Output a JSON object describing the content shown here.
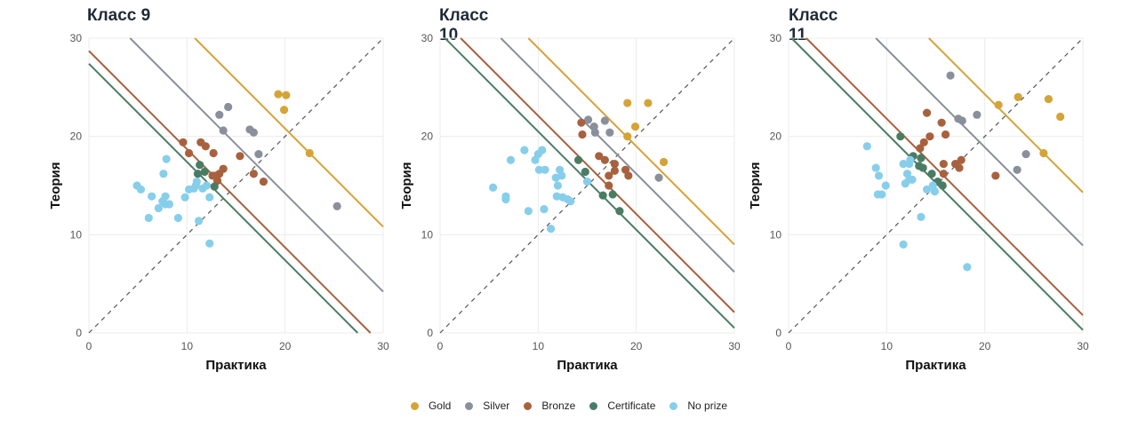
{
  "chart_data": [
    {
      "type": "scatter",
      "title": "Класс 9",
      "xlabel": "Практика",
      "ylabel": "Теория",
      "xlim": [
        0,
        30
      ],
      "ylim": [
        0,
        30
      ],
      "xticks": [
        0,
        10,
        20,
        30
      ],
      "yticks": [
        0,
        10,
        20,
        30
      ],
      "grid": true,
      "thresholds": {
        "Gold": 40.8,
        "Silver": 34.2,
        "Bronze": 28.7,
        "Certificate": 27.4
      },
      "series": [
        {
          "name": "Gold",
          "points": [
            [
              19.3,
              24.3
            ],
            [
              20.1,
              24.2
            ],
            [
              19.9,
              22.7
            ],
            [
              22.5,
              18.3
            ]
          ]
        },
        {
          "name": "Silver",
          "points": [
            [
              13.3,
              22.2
            ],
            [
              14.2,
              23.0
            ],
            [
              13.7,
              20.6
            ],
            [
              16.4,
              20.7
            ],
            [
              16.8,
              20.4
            ],
            [
              17.3,
              18.2
            ],
            [
              25.3,
              12.9
            ]
          ]
        },
        {
          "name": "Bronze",
          "points": [
            [
              9.6,
              19.4
            ],
            [
              10.2,
              18.3
            ],
            [
              11.4,
              19.4
            ],
            [
              11.9,
              19.0
            ],
            [
              12.7,
              18.3
            ],
            [
              15.4,
              18.0
            ],
            [
              13.7,
              16.7
            ],
            [
              13.3,
              16.2
            ],
            [
              12.9,
              16.0
            ],
            [
              13.1,
              15.5
            ],
            [
              12.6,
              16.0
            ],
            [
              16.8,
              16.2
            ],
            [
              17.8,
              15.4
            ]
          ]
        },
        {
          "name": "Certificate",
          "points": [
            [
              11.3,
              17.1
            ],
            [
              11.1,
              16.2
            ],
            [
              11.8,
              16.4
            ],
            [
              12.8,
              14.9
            ]
          ]
        },
        {
          "name": "No prize",
          "points": [
            [
              4.9,
              15.0
            ],
            [
              5.3,
              14.6
            ],
            [
              6.4,
              13.9
            ],
            [
              6.1,
              11.7
            ],
            [
              7.1,
              12.7
            ],
            [
              7.6,
              16.2
            ],
            [
              7.9,
              17.7
            ],
            [
              7.8,
              13.9
            ],
            [
              7.5,
              13.4
            ],
            [
              7.8,
              13.1
            ],
            [
              8.2,
              13.1
            ],
            [
              9.1,
              11.7
            ],
            [
              9.8,
              13.8
            ],
            [
              10.2,
              14.6
            ],
            [
              10.7,
              14.7
            ],
            [
              11.0,
              15.4
            ],
            [
              11.6,
              14.7
            ],
            [
              10.9,
              15.0
            ],
            [
              12.0,
              15.0
            ],
            [
              12.3,
              13.8
            ],
            [
              11.2,
              11.4
            ],
            [
              12.3,
              9.1
            ]
          ]
        }
      ]
    },
    {
      "type": "scatter",
      "title": "Класс 10",
      "xlabel": "Практика",
      "ylabel": "Теория",
      "xlim": [
        0,
        30
      ],
      "ylim": [
        0,
        30
      ],
      "xticks": [
        0,
        10,
        20,
        30
      ],
      "yticks": [
        0,
        10,
        20,
        30
      ],
      "grid": true,
      "thresholds": {
        "Gold": 39.0,
        "Silver": 36.2,
        "Bronze": 32.1,
        "Certificate": 30.5
      },
      "series": [
        {
          "name": "Gold",
          "points": [
            [
              19.1,
              23.4
            ],
            [
              21.2,
              23.4
            ],
            [
              19.9,
              21.0
            ],
            [
              19.1,
              20.0
            ],
            [
              22.8,
              17.4
            ]
          ]
        },
        {
          "name": "Silver",
          "points": [
            [
              15.1,
              21.7
            ],
            [
              16.8,
              21.6
            ],
            [
              15.7,
              21.0
            ],
            [
              15.8,
              20.4
            ],
            [
              17.3,
              20.4
            ],
            [
              22.3,
              15.8
            ]
          ]
        },
        {
          "name": "Bronze",
          "points": [
            [
              14.4,
              21.4
            ],
            [
              14.5,
              20.2
            ],
            [
              16.2,
              18.0
            ],
            [
              16.8,
              17.6
            ],
            [
              17.8,
              17.2
            ],
            [
              17.8,
              16.5
            ],
            [
              18.9,
              16.6
            ],
            [
              19.2,
              16.0
            ],
            [
              17.2,
              16.0
            ],
            [
              17.2,
              15.0
            ]
          ]
        },
        {
          "name": "Certificate",
          "points": [
            [
              14.1,
              17.6
            ],
            [
              14.8,
              16.4
            ],
            [
              16.6,
              14.0
            ],
            [
              17.6,
              14.1
            ],
            [
              18.3,
              12.4
            ]
          ]
        },
        {
          "name": "No prize",
          "points": [
            [
              5.4,
              14.8
            ],
            [
              6.7,
              13.9
            ],
            [
              6.7,
              13.6
            ],
            [
              7.2,
              17.6
            ],
            [
              8.6,
              18.6
            ],
            [
              9.0,
              12.4
            ],
            [
              9.7,
              17.6
            ],
            [
              10.0,
              18.2
            ],
            [
              10.4,
              18.6
            ],
            [
              10.1,
              16.6
            ],
            [
              10.7,
              16.6
            ],
            [
              12.2,
              16.6
            ],
            [
              11.8,
              15.8
            ],
            [
              12.4,
              16.0
            ],
            [
              12.0,
              15.0
            ],
            [
              10.6,
              12.6
            ],
            [
              11.9,
              13.9
            ],
            [
              12.5,
              13.8
            ],
            [
              13.0,
              13.6
            ],
            [
              13.3,
              13.4
            ],
            [
              11.3,
              10.6
            ],
            [
              15.0,
              15.4
            ]
          ]
        }
      ]
    },
    {
      "type": "scatter",
      "title": "Класс 11",
      "xlabel": "Практика",
      "ylabel": "Теория",
      "xlim": [
        0,
        30
      ],
      "ylim": [
        0,
        30
      ],
      "xticks": [
        0,
        10,
        20,
        30
      ],
      "yticks": [
        0,
        10,
        20,
        30
      ],
      "grid": true,
      "thresholds": {
        "Gold": 44.3,
        "Silver": 38.9,
        "Bronze": 31.8,
        "Certificate": 30.3
      },
      "series": [
        {
          "name": "Gold",
          "points": [
            [
              21.4,
              23.2
            ],
            [
              23.4,
              24.0
            ],
            [
              26.5,
              23.8
            ],
            [
              27.7,
              22.0
            ],
            [
              26.0,
              18.3
            ]
          ]
        },
        {
          "name": "Silver",
          "points": [
            [
              16.5,
              26.2
            ],
            [
              17.3,
              21.8
            ],
            [
              17.7,
              21.6
            ],
            [
              19.2,
              22.2
            ],
            [
              24.2,
              18.2
            ],
            [
              23.3,
              16.6
            ]
          ]
        },
        {
          "name": "Bronze",
          "points": [
            [
              14.1,
              22.4
            ],
            [
              15.6,
              21.4
            ],
            [
              16.0,
              20.2
            ],
            [
              14.4,
              20.0
            ],
            [
              13.8,
              19.4
            ],
            [
              13.4,
              18.8
            ],
            [
              15.8,
              17.2
            ],
            [
              17.0,
              17.2
            ],
            [
              17.6,
              17.6
            ],
            [
              17.4,
              16.8
            ],
            [
              15.8,
              16.2
            ],
            [
              21.1,
              16.0
            ]
          ]
        },
        {
          "name": "Certificate",
          "points": [
            [
              11.4,
              20.0
            ],
            [
              12.7,
              18.0
            ],
            [
              13.5,
              17.8
            ],
            [
              13.3,
              17.0
            ],
            [
              13.7,
              16.8
            ],
            [
              14.6,
              16.2
            ],
            [
              15.2,
              15.4
            ],
            [
              15.7,
              15.0
            ]
          ]
        },
        {
          "name": "No prize",
          "points": [
            [
              8.0,
              19.0
            ],
            [
              8.9,
              16.8
            ],
            [
              9.2,
              16.0
            ],
            [
              9.9,
              15.0
            ],
            [
              9.1,
              14.1
            ],
            [
              9.5,
              14.1
            ],
            [
              11.7,
              17.2
            ],
            [
              12.3,
              17.2
            ],
            [
              12.4,
              17.6
            ],
            [
              12.1,
              16.2
            ],
            [
              11.9,
              15.2
            ],
            [
              12.3,
              15.6
            ],
            [
              12.6,
              15.6
            ],
            [
              14.1,
              14.6
            ],
            [
              14.7,
              15.0
            ],
            [
              14.9,
              14.4
            ],
            [
              13.5,
              11.8
            ],
            [
              11.7,
              9.0
            ],
            [
              18.2,
              6.7
            ]
          ]
        }
      ]
    }
  ],
  "legend": [
    {
      "name": "Gold",
      "color": "#D4A437"
    },
    {
      "name": "Silver",
      "color": "#8A909B"
    },
    {
      "name": "Bronze",
      "color": "#A8613F"
    },
    {
      "name": "Certificate",
      "color": "#4A7C64"
    },
    {
      "name": "No prize",
      "color": "#87CEEB"
    }
  ]
}
